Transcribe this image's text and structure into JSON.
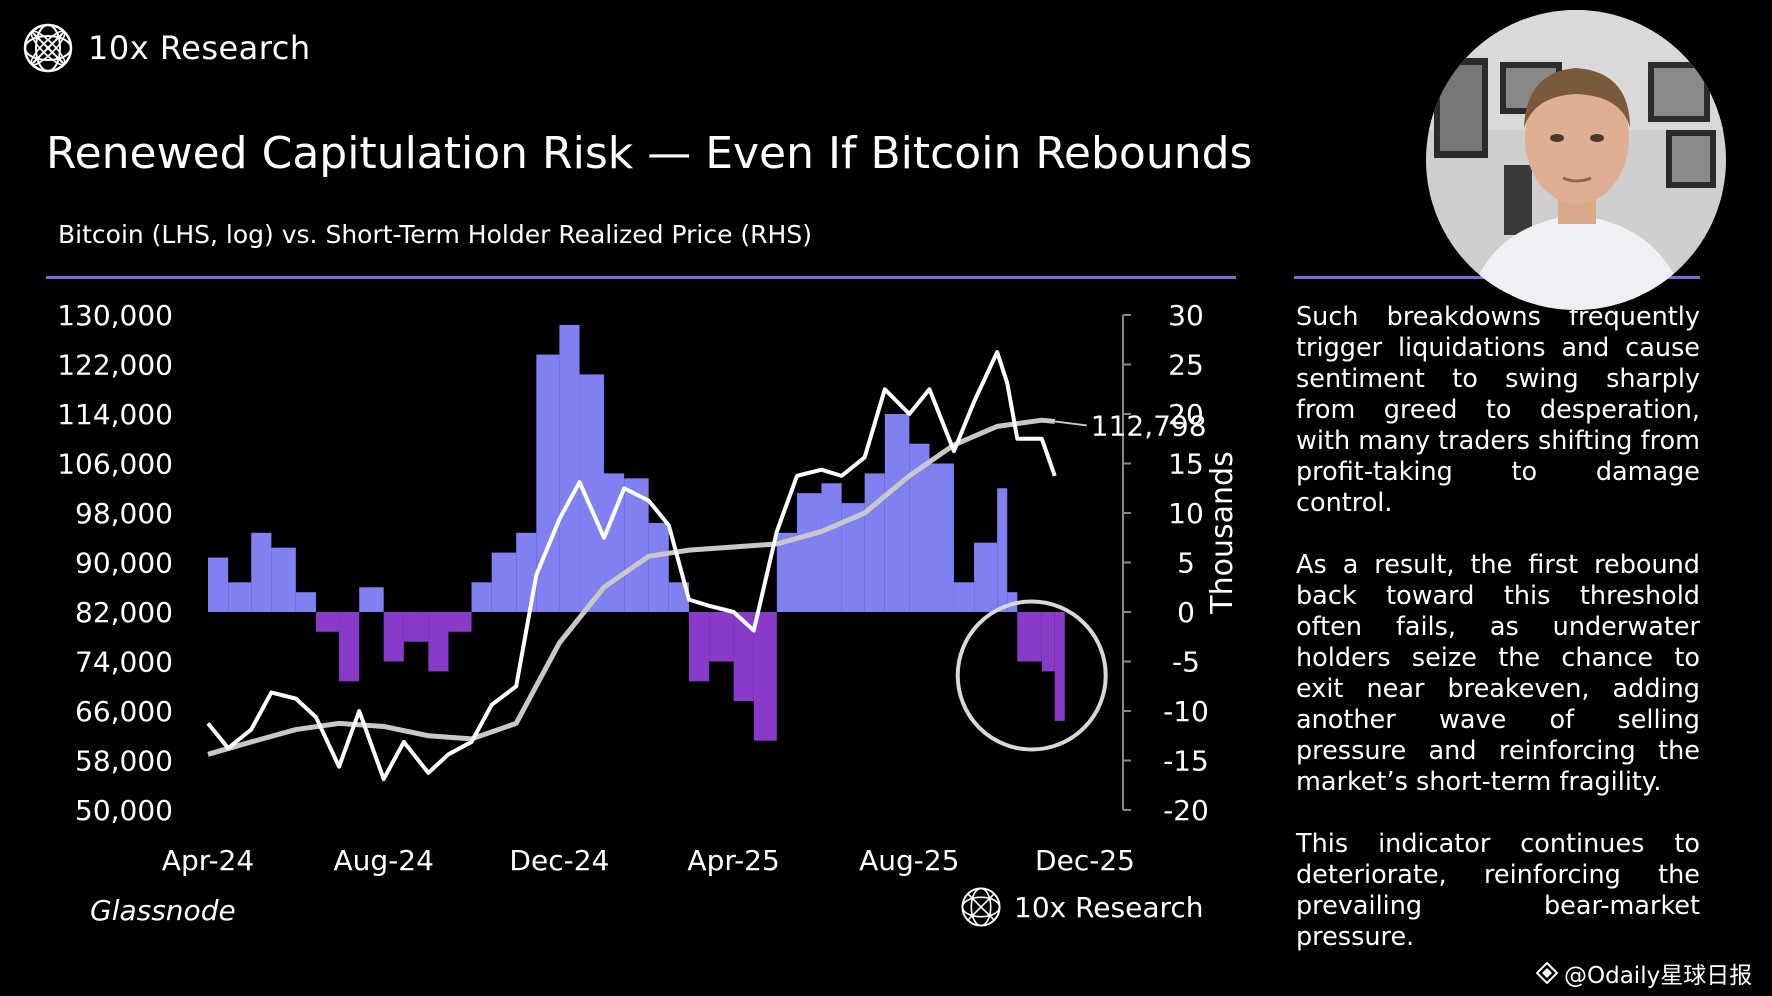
{
  "brand": {
    "name": "10x Research"
  },
  "title": "Renewed Capitulation Risk — Even If Bitcoin Rebounds",
  "subtitle": "Bitcoin (LHS, log) vs. Short-Term Holder Realized Price (RHS)",
  "source": "Glassnode",
  "commentary": [
    "Such breakdowns frequently trigger liquidations and cause sentiment to swing sharply from greed to desperation, with many traders shifting from profit-taking to damage control.",
    "As a result, the first rebound back toward this threshold often fails, as underwater holders seize the chance to exit near breakeven, adding another wave of selling pressure and reinforcing the market’s short-term fragility.",
    "This indicator continues to deteriorate, reinforcing the prevailing bear-market pressure."
  ],
  "watermark": "@Odaily星球日报",
  "colors": {
    "background": "#000000",
    "rule": "#7070e0",
    "bar_positive": "#8080f0",
    "bar_negative": "#8a3ac8",
    "price_line": "#ffffff",
    "realized_line": "#c8c8c8",
    "circle": "#d8d8d8"
  },
  "icons": {
    "logo": "globe-grid-icon",
    "watermark": "diamond-icon"
  },
  "chart_data": {
    "type": "bar+line",
    "x_tick_labels": [
      "Apr-24",
      "Aug-24",
      "Dec-24",
      "Apr-25",
      "Aug-25",
      "Dec-25"
    ],
    "x_ticks": [
      "2024-04-01",
      "2024-08-01",
      "2024-12-01",
      "2025-04-01",
      "2025-08-01",
      "2025-12-01"
    ],
    "left_axis": {
      "label": "",
      "range": [
        50000,
        130000
      ],
      "ticks": [
        130000,
        122000,
        114000,
        106000,
        98000,
        90000,
        82000,
        74000,
        66000,
        58000,
        50000
      ],
      "tick_labels": [
        "130,000",
        "122,000",
        "114,000",
        "106,000",
        "98,000",
        "90,000",
        "82,000",
        "74,000",
        "66,000",
        "58,000",
        "50,000"
      ]
    },
    "right_axis": {
      "label": "Thousands",
      "range": [
        -20,
        30
      ],
      "ticks": [
        30,
        25,
        20,
        15,
        10,
        5,
        0,
        -5,
        -10,
        -15,
        -20
      ],
      "tick_labels": [
        "30",
        "25",
        "20",
        "15",
        "10",
        "5",
        "0",
        "-5",
        "-10",
        "-15",
        "-20"
      ]
    },
    "series": [
      {
        "type": "bar",
        "axis": "right",
        "points": [
          [
            "2024-04-01",
            5.5
          ],
          [
            "2024-04-15",
            3
          ],
          [
            "2024-05-01",
            8
          ],
          [
            "2024-05-15",
            6.5
          ],
          [
            "2024-06-01",
            2
          ],
          [
            "2024-06-15",
            -2
          ],
          [
            "2024-07-01",
            -7
          ],
          [
            "2024-07-15",
            2.5
          ],
          [
            "2024-08-01",
            -5
          ],
          [
            "2024-08-15",
            -3
          ],
          [
            "2024-09-01",
            -6
          ],
          [
            "2024-09-15",
            -2
          ],
          [
            "2024-10-01",
            3
          ],
          [
            "2024-10-15",
            6
          ],
          [
            "2024-11-01",
            8
          ],
          [
            "2024-11-15",
            26
          ],
          [
            "2024-12-01",
            29
          ],
          [
            "2024-12-15",
            24
          ],
          [
            "2025-01-01",
            14
          ],
          [
            "2025-01-15",
            13.5
          ],
          [
            "2025-02-01",
            9
          ],
          [
            "2025-02-15",
            3
          ],
          [
            "2025-03-01",
            -7
          ],
          [
            "2025-03-15",
            -5
          ],
          [
            "2025-04-01",
            -9
          ],
          [
            "2025-04-15",
            -13
          ],
          [
            "2025-05-01",
            8
          ],
          [
            "2025-05-15",
            12
          ],
          [
            "2025-06-01",
            13
          ],
          [
            "2025-06-15",
            11
          ],
          [
            "2025-07-01",
            14
          ],
          [
            "2025-07-15",
            20
          ],
          [
            "2025-08-01",
            17
          ],
          [
            "2025-08-15",
            15
          ],
          [
            "2025-09-01",
            3
          ],
          [
            "2025-09-15",
            7
          ],
          [
            "2025-10-01",
            12.5
          ],
          [
            "2025-10-08",
            2
          ],
          [
            "2025-10-15",
            -5
          ],
          [
            "2025-11-01",
            -6
          ],
          [
            "2025-11-10",
            -11
          ]
        ]
      },
      {
        "type": "line",
        "axis": "left",
        "points": [
          [
            "2024-04-01",
            64000
          ],
          [
            "2024-04-15",
            60000
          ],
          [
            "2024-05-01",
            63000
          ],
          [
            "2024-05-15",
            69000
          ],
          [
            "2024-06-01",
            68000
          ],
          [
            "2024-06-15",
            65000
          ],
          [
            "2024-07-01",
            57000
          ],
          [
            "2024-07-15",
            66000
          ],
          [
            "2024-08-01",
            55000
          ],
          [
            "2024-08-15",
            61000
          ],
          [
            "2024-09-01",
            56000
          ],
          [
            "2024-09-15",
            59000
          ],
          [
            "2024-10-01",
            61000
          ],
          [
            "2024-10-15",
            67000
          ],
          [
            "2024-11-01",
            70000
          ],
          [
            "2024-11-15",
            88000
          ],
          [
            "2024-12-01",
            97000
          ],
          [
            "2024-12-15",
            103000
          ],
          [
            "2025-01-01",
            94000
          ],
          [
            "2025-01-15",
            102000
          ],
          [
            "2025-02-01",
            100000
          ],
          [
            "2025-02-15",
            96000
          ],
          [
            "2025-03-01",
            84000
          ],
          [
            "2025-03-15",
            83000
          ],
          [
            "2025-04-01",
            82000
          ],
          [
            "2025-04-15",
            79000
          ],
          [
            "2025-05-01",
            95000
          ],
          [
            "2025-05-15",
            104000
          ],
          [
            "2025-06-01",
            105000
          ],
          [
            "2025-06-15",
            104000
          ],
          [
            "2025-07-01",
            107000
          ],
          [
            "2025-07-15",
            118000
          ],
          [
            "2025-08-01",
            114000
          ],
          [
            "2025-08-15",
            118000
          ],
          [
            "2025-09-01",
            108000
          ],
          [
            "2025-09-15",
            116000
          ],
          [
            "2025-10-01",
            124000
          ],
          [
            "2025-10-08",
            119000
          ],
          [
            "2025-10-15",
            110000
          ],
          [
            "2025-11-01",
            110000
          ],
          [
            "2025-11-10",
            104000
          ]
        ]
      },
      {
        "type": "line",
        "axis": "left",
        "points": [
          [
            "2024-04-01",
            59000
          ],
          [
            "2024-05-01",
            61000
          ],
          [
            "2024-06-01",
            63000
          ],
          [
            "2024-07-01",
            64000
          ],
          [
            "2024-08-01",
            63500
          ],
          [
            "2024-09-01",
            62000
          ],
          [
            "2024-10-01",
            61500
          ],
          [
            "2024-11-01",
            64000
          ],
          [
            "2024-12-01",
            77000
          ],
          [
            "2025-01-01",
            86000
          ],
          [
            "2025-02-01",
            91000
          ],
          [
            "2025-03-01",
            92000
          ],
          [
            "2025-04-01",
            92500
          ],
          [
            "2025-05-01",
            93000
          ],
          [
            "2025-06-01",
            95000
          ],
          [
            "2025-07-01",
            98000
          ],
          [
            "2025-08-01",
            104000
          ],
          [
            "2025-09-01",
            109000
          ],
          [
            "2025-10-01",
            112000
          ],
          [
            "2025-11-01",
            113000
          ],
          [
            "2025-11-10",
            112798
          ]
        ]
      }
    ],
    "annotations": [
      {
        "type": "label",
        "text": "112,798",
        "date": "2025-11-10",
        "value": 112798
      },
      {
        "type": "circle",
        "date": "2025-10-25",
        "value_right": -5
      }
    ],
    "grid": false,
    "legend": "none"
  }
}
